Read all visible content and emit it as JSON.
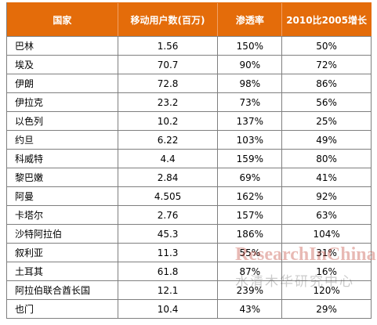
{
  "table": {
    "headers": [
      "国家",
      "移动用户数(百万)",
      "渗透率",
      "2010比2005增长"
    ],
    "rows": [
      [
        "巴林",
        "1.56",
        "150%",
        "50%"
      ],
      [
        "埃及",
        "70.7",
        "90%",
        "72%"
      ],
      [
        "伊朗",
        "72.8",
        "98%",
        "86%"
      ],
      [
        "伊拉克",
        "23.2",
        "73%",
        "56%"
      ],
      [
        "以色列",
        "10.2",
        "137%",
        "25%"
      ],
      [
        "约旦",
        "6.22",
        "103%",
        "49%"
      ],
      [
        "科威特",
        "4.4",
        "159%",
        "80%"
      ],
      [
        "黎巴嫩",
        "2.84",
        "69%",
        "41%"
      ],
      [
        "阿曼",
        "4.505",
        "162%",
        "92%"
      ],
      [
        "卡塔尔",
        "2.76",
        "157%",
        "63%"
      ],
      [
        "沙特阿拉伯",
        "45.3",
        "186%",
        "104%"
      ],
      [
        "叙利亚",
        "11.3",
        "55%",
        "31%"
      ],
      [
        "土耳其",
        "61.8",
        "87%",
        "16%"
      ],
      [
        "阿拉伯联合酋长国",
        "12.1",
        "239%",
        "120%"
      ],
      [
        "也门",
        "10.4",
        "43%",
        "29%"
      ]
    ]
  },
  "watermark": {
    "brand": "ResearchInChina",
    "chinese": "水清木华研究中心"
  },
  "colors": {
    "header_bg": "#E46C0A",
    "header_text": "#FFFFFF",
    "grid": "#7F7F7F"
  }
}
